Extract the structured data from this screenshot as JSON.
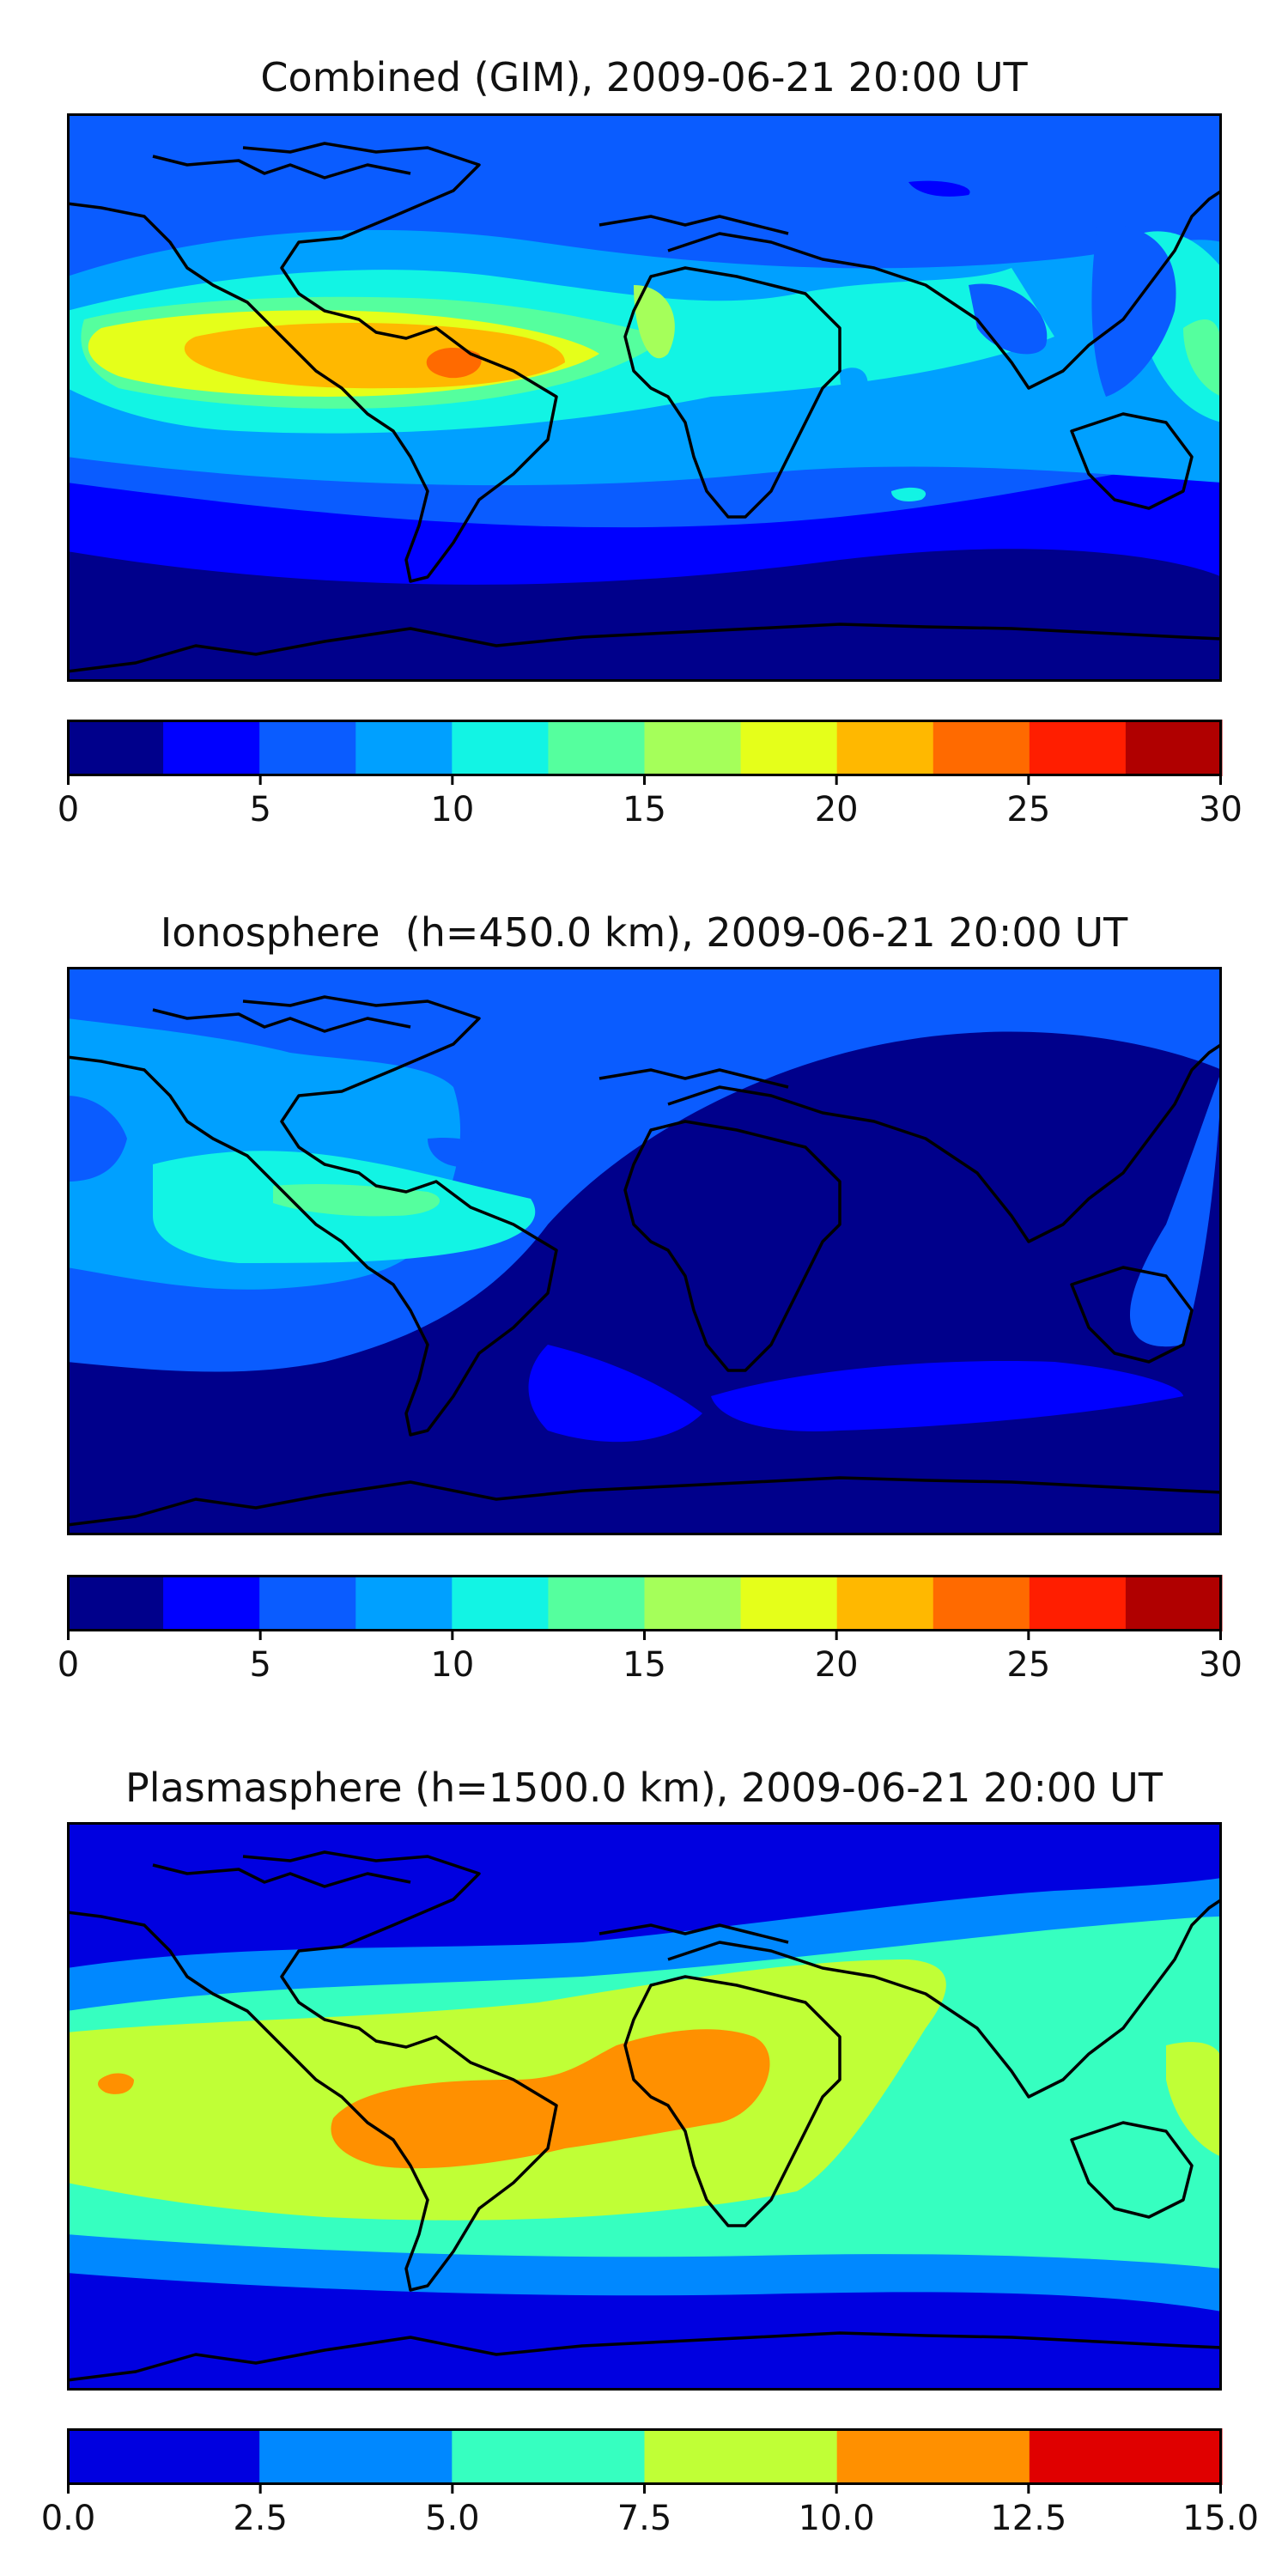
{
  "panels": [
    {
      "title": "Combined (GIM), 2009-06-21 20:00 UT",
      "colorbar": {
        "min": 0,
        "max": 30,
        "ticks": [
          "0",
          "5",
          "10",
          "15",
          "20",
          "25",
          "30"
        ],
        "colors": [
          "#00008b",
          "#0000ff",
          "#0a5cff",
          "#00a0ff",
          "#12f4e4",
          "#55ff9e",
          "#a5ff5a",
          "#e5ff1a",
          "#ffb800",
          "#ff6a00",
          "#ff1e00",
          "#b00000"
        ]
      }
    },
    {
      "title": "Ionosphere  (h=450.0 km), 2009-06-21 20:00 UT",
      "colorbar": {
        "min": 0,
        "max": 30,
        "ticks": [
          "0",
          "5",
          "10",
          "15",
          "20",
          "25",
          "30"
        ],
        "colors": [
          "#00008b",
          "#0000ff",
          "#0a5cff",
          "#00a0ff",
          "#12f4e4",
          "#55ff9e",
          "#a5ff5a",
          "#e5ff1a",
          "#ffb800",
          "#ff6a00",
          "#ff1e00",
          "#b00000"
        ]
      }
    },
    {
      "title": "Plasmasphere (h=1500.0 km), 2009-06-21 20:00 UT",
      "colorbar": {
        "min": 0,
        "max": 15,
        "ticks": [
          "0.0",
          "2.5",
          "5.0",
          "7.5",
          "10.0",
          "12.5",
          "15.0"
        ],
        "colors": [
          "#0000e0",
          "#0088ff",
          "#36ffc0",
          "#c0ff36",
          "#ff9000",
          "#e00000"
        ]
      }
    }
  ]
}
